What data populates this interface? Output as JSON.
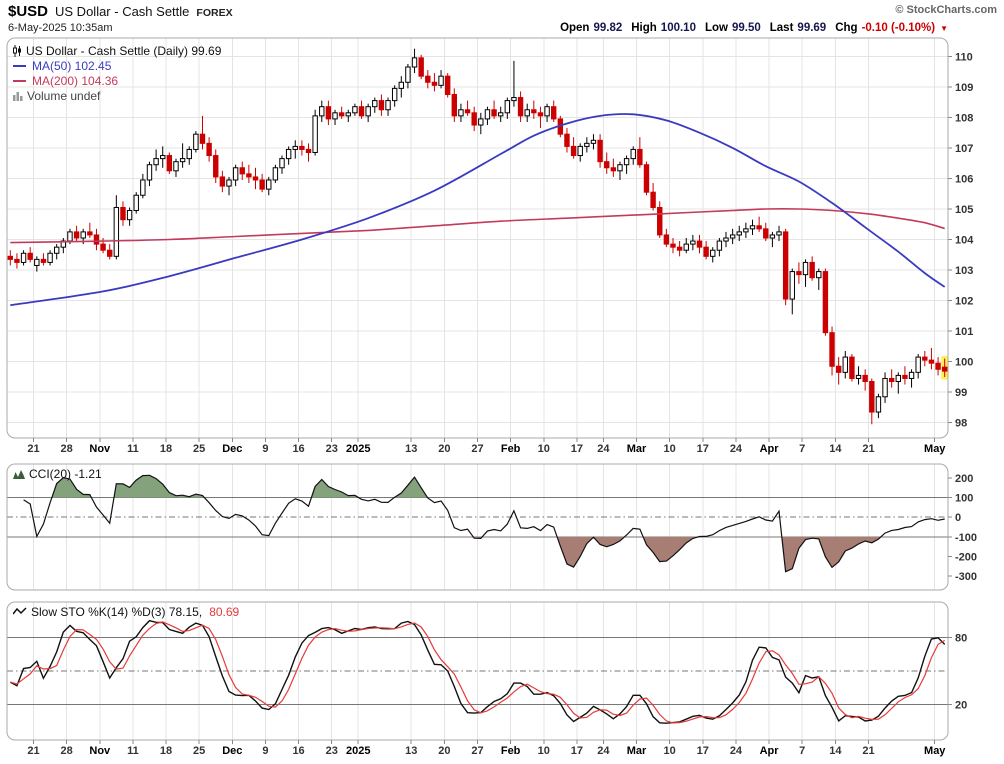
{
  "header": {
    "symbol": "$USD",
    "title": "US Dollar - Cash Settle",
    "exchange": "FOREX",
    "timestamp": "6-May-2025 10:35am",
    "copyright": "© StockCharts.com",
    "quote": {
      "open_label": "Open",
      "open": "99.82",
      "high_label": "High",
      "high": "100.10",
      "low_label": "Low",
      "low": "99.50",
      "last_label": "Last",
      "last": "99.69",
      "chg_label": "Chg",
      "chg": "-0.10 (-0.10%)"
    }
  },
  "main_panel": {
    "legend_title": "US Dollar - Cash Settle (Daily) 99.69",
    "ma50_label": "MA(50) 102.45",
    "ma200_label": "MA(200) 104.36",
    "volume_label": "Volume undef"
  },
  "cci_panel": {
    "legend": "CCI(20) -1.21"
  },
  "sto_panel": {
    "legend_k": "Slow STO %K(14) %D(3) 78.15,",
    "legend_d": "80.69"
  },
  "colors": {
    "up": "#000000",
    "down": "#cc0000",
    "ma50": "#3a3ac0",
    "ma200": "#c43a5c",
    "sto_d": "#e63a3a",
    "grid": "#e4e4e4",
    "panel_border": "#aaaaaa",
    "axis_text": "#333333",
    "cci_pos_fill": "#84a27c",
    "cci_neg_fill": "#a87d74",
    "highlight": "#ffee55"
  },
  "chart_data": {
    "type": "candlestick",
    "title": "US Dollar - Cash Settle (Daily)",
    "last_close": 99.69,
    "price_range": [
      97.5,
      110.6
    ],
    "y_ticks_price": [
      98,
      99,
      100,
      101,
      102,
      103,
      104,
      105,
      106,
      107,
      108,
      109,
      110
    ],
    "x_ticks": [
      {
        "i": 4,
        "l": "21"
      },
      {
        "i": 9,
        "l": "28"
      },
      {
        "i": 14,
        "l": "Nov",
        "b": 1
      },
      {
        "i": 19,
        "l": "11"
      },
      {
        "i": 24,
        "l": "18"
      },
      {
        "i": 29,
        "l": "25"
      },
      {
        "i": 34,
        "l": "Dec",
        "b": 1
      },
      {
        "i": 39,
        "l": "9"
      },
      {
        "i": 44,
        "l": "16"
      },
      {
        "i": 49,
        "l": "23"
      },
      {
        "i": 53,
        "l": "2025",
        "b": 1
      },
      {
        "i": 61,
        "l": "13"
      },
      {
        "i": 66,
        "l": "20"
      },
      {
        "i": 71,
        "l": "27"
      },
      {
        "i": 76,
        "l": "Feb",
        "b": 1
      },
      {
        "i": 81,
        "l": "10"
      },
      {
        "i": 86,
        "l": "17"
      },
      {
        "i": 90,
        "l": "24"
      },
      {
        "i": 95,
        "l": "Mar",
        "b": 1
      },
      {
        "i": 100,
        "l": "10"
      },
      {
        "i": 105,
        "l": "17"
      },
      {
        "i": 110,
        "l": "24"
      },
      {
        "i": 115,
        "l": "Apr",
        "b": 1
      },
      {
        "i": 120,
        "l": "7"
      },
      {
        "i": 125,
        "l": "14"
      },
      {
        "i": 130,
        "l": "21"
      },
      {
        "i": 140,
        "l": "May",
        "b": 1
      }
    ],
    "candles": [
      [
        103.45,
        103.65,
        103.15,
        103.35
      ],
      [
        103.35,
        103.55,
        103.05,
        103.25
      ],
      [
        103.25,
        103.65,
        103.15,
        103.55
      ],
      [
        103.55,
        103.75,
        103.25,
        103.35
      ],
      [
        103.15,
        103.45,
        102.95,
        103.35
      ],
      [
        103.35,
        103.55,
        103.15,
        103.25
      ],
      [
        103.25,
        103.65,
        103.15,
        103.55
      ],
      [
        103.55,
        103.85,
        103.35,
        103.75
      ],
      [
        103.75,
        104.05,
        103.55,
        103.95
      ],
      [
        103.95,
        104.35,
        103.85,
        104.25
      ],
      [
        104.25,
        104.45,
        103.95,
        104.05
      ],
      [
        104.05,
        104.35,
        103.85,
        104.25
      ],
      [
        104.25,
        104.55,
        104.05,
        104.15
      ],
      [
        104.15,
        104.35,
        103.65,
        103.85
      ],
      [
        103.85,
        104.05,
        103.55,
        103.65
      ],
      [
        103.65,
        103.85,
        103.35,
        103.45
      ],
      [
        103.45,
        105.45,
        103.35,
        105.05
      ],
      [
        105.05,
        105.25,
        104.45,
        104.65
      ],
      [
        104.65,
        105.05,
        104.45,
        104.95
      ],
      [
        104.95,
        105.55,
        104.85,
        105.45
      ],
      [
        105.45,
        106.15,
        105.35,
        105.95
      ],
      [
        105.95,
        106.55,
        105.75,
        106.45
      ],
      [
        106.45,
        106.95,
        106.25,
        106.65
      ],
      [
        106.65,
        107.05,
        106.35,
        106.75
      ],
      [
        106.75,
        106.85,
        106.15,
        106.25
      ],
      [
        106.25,
        106.65,
        106.05,
        106.55
      ],
      [
        106.55,
        107.15,
        106.35,
        106.65
      ],
      [
        106.65,
        107.05,
        106.45,
        106.95
      ],
      [
        106.95,
        107.55,
        106.85,
        107.45
      ],
      [
        107.45,
        108.05,
        106.95,
        107.15
      ],
      [
        107.15,
        107.35,
        106.55,
        106.75
      ],
      [
        106.75,
        106.95,
        105.85,
        106.05
      ],
      [
        106.05,
        106.25,
        105.55,
        105.75
      ],
      [
        105.75,
        106.05,
        105.45,
        105.95
      ],
      [
        105.95,
        106.45,
        105.75,
        106.35
      ],
      [
        106.35,
        106.55,
        105.95,
        106.15
      ],
      [
        106.15,
        106.45,
        105.85,
        106.05
      ],
      [
        106.05,
        106.35,
        105.65,
        105.95
      ],
      [
        105.95,
        106.15,
        105.55,
        105.65
      ],
      [
        105.65,
        106.05,
        105.45,
        105.95
      ],
      [
        105.95,
        106.45,
        105.85,
        106.35
      ],
      [
        106.35,
        106.75,
        106.15,
        106.65
      ],
      [
        106.65,
        107.05,
        106.45,
        106.95
      ],
      [
        106.95,
        107.25,
        106.65,
        107.05
      ],
      [
        107.05,
        107.25,
        106.75,
        106.95
      ],
      [
        106.95,
        107.15,
        106.55,
        106.85
      ],
      [
        106.85,
        108.25,
        106.75,
        108.05
      ],
      [
        108.05,
        108.55,
        107.85,
        108.35
      ],
      [
        108.35,
        108.55,
        107.75,
        107.95
      ],
      [
        107.95,
        108.25,
        107.75,
        108.15
      ],
      [
        108.15,
        108.35,
        107.95,
        108.05
      ],
      [
        108.05,
        108.25,
        107.85,
        108.15
      ],
      [
        108.15,
        108.45,
        108.05,
        108.35
      ],
      [
        108.35,
        108.55,
        107.95,
        108.05
      ],
      [
        108.05,
        108.45,
        107.85,
        108.35
      ],
      [
        108.35,
        108.65,
        108.15,
        108.55
      ],
      [
        108.55,
        108.75,
        108.05,
        108.25
      ],
      [
        108.25,
        108.65,
        108.05,
        108.55
      ],
      [
        108.55,
        109.05,
        108.35,
        108.95
      ],
      [
        108.95,
        109.35,
        108.65,
        109.15
      ],
      [
        109.15,
        109.75,
        108.95,
        109.65
      ],
      [
        109.65,
        110.25,
        109.45,
        109.95
      ],
      [
        109.95,
        110.05,
        109.25,
        109.35
      ],
      [
        109.35,
        109.55,
        108.95,
        109.15
      ],
      [
        109.15,
        109.45,
        108.85,
        109.05
      ],
      [
        109.05,
        109.55,
        108.95,
        109.35
      ],
      [
        109.35,
        109.45,
        108.65,
        108.75
      ],
      [
        108.75,
        108.95,
        107.85,
        108.05
      ],
      [
        108.05,
        108.45,
        107.85,
        108.25
      ],
      [
        108.25,
        108.55,
        108.05,
        108.15
      ],
      [
        108.15,
        108.35,
        107.55,
        107.75
      ],
      [
        107.75,
        108.15,
        107.45,
        107.95
      ],
      [
        107.95,
        108.35,
        107.75,
        108.25
      ],
      [
        108.25,
        108.55,
        107.95,
        108.05
      ],
      [
        108.05,
        108.35,
        107.85,
        108.15
      ],
      [
        108.15,
        108.65,
        107.95,
        108.55
      ],
      [
        108.55,
        109.85,
        108.35,
        108.65
      ],
      [
        108.65,
        108.85,
        107.85,
        108.05
      ],
      [
        108.05,
        108.45,
        107.85,
        108.25
      ],
      [
        108.25,
        108.55,
        107.95,
        108.15
      ],
      [
        108.15,
        108.35,
        107.65,
        108.05
      ],
      [
        108.05,
        108.45,
        107.85,
        108.35
      ],
      [
        108.35,
        108.55,
        107.85,
        107.95
      ],
      [
        107.95,
        108.05,
        107.35,
        107.45
      ],
      [
        107.45,
        107.65,
        106.85,
        107.05
      ],
      [
        107.05,
        107.35,
        106.65,
        106.75
      ],
      [
        106.75,
        107.15,
        106.55,
        107.05
      ],
      [
        107.05,
        107.35,
        106.85,
        107.15
      ],
      [
        107.15,
        107.45,
        106.95,
        107.25
      ],
      [
        107.25,
        107.45,
        106.35,
        106.55
      ],
      [
        106.55,
        106.85,
        106.15,
        106.35
      ],
      [
        106.35,
        106.65,
        106.05,
        106.25
      ],
      [
        106.25,
        106.55,
        105.95,
        106.45
      ],
      [
        106.45,
        106.75,
        106.15,
        106.65
      ],
      [
        106.65,
        107.05,
        106.45,
        106.95
      ],
      [
        106.95,
        107.35,
        106.35,
        106.45
      ],
      [
        106.45,
        106.55,
        105.45,
        105.55
      ],
      [
        105.55,
        105.85,
        104.95,
        105.05
      ],
      [
        105.05,
        105.25,
        104.05,
        104.15
      ],
      [
        104.15,
        104.35,
        103.75,
        103.85
      ],
      [
        103.85,
        104.05,
        103.55,
        103.75
      ],
      [
        103.75,
        103.95,
        103.45,
        103.65
      ],
      [
        103.65,
        104.05,
        103.55,
        103.85
      ],
      [
        103.85,
        104.15,
        103.65,
        103.95
      ],
      [
        103.95,
        104.15,
        103.55,
        103.75
      ],
      [
        103.75,
        103.95,
        103.35,
        103.45
      ],
      [
        103.45,
        103.75,
        103.25,
        103.65
      ],
      [
        103.65,
        104.05,
        103.45,
        103.95
      ],
      [
        103.95,
        104.25,
        103.75,
        104.05
      ],
      [
        104.05,
        104.35,
        103.85,
        104.15
      ],
      [
        104.15,
        104.45,
        103.95,
        104.25
      ],
      [
        104.25,
        104.55,
        104.05,
        104.35
      ],
      [
        104.35,
        104.65,
        104.15,
        104.45
      ],
      [
        104.45,
        104.75,
        104.25,
        104.35
      ],
      [
        104.35,
        104.55,
        103.95,
        104.05
      ],
      [
        104.05,
        104.25,
        103.75,
        104.15
      ],
      [
        104.15,
        104.45,
        103.95,
        104.25
      ],
      [
        104.25,
        104.35,
        101.85,
        102.05
      ],
      [
        102.05,
        103.05,
        101.55,
        102.95
      ],
      [
        102.95,
        103.25,
        102.55,
        102.85
      ],
      [
        102.85,
        103.35,
        102.45,
        103.25
      ],
      [
        103.25,
        103.45,
        102.65,
        102.75
      ],
      [
        102.75,
        103.05,
        102.35,
        102.95
      ],
      [
        102.95,
        103.05,
        100.85,
        100.95
      ],
      [
        100.95,
        101.15,
        99.55,
        99.85
      ],
      [
        99.85,
        100.15,
        99.25,
        99.65
      ],
      [
        99.65,
        100.35,
        99.45,
        100.15
      ],
      [
        100.15,
        100.25,
        99.35,
        99.45
      ],
      [
        99.45,
        99.85,
        99.25,
        99.55
      ],
      [
        99.55,
        99.75,
        99.05,
        99.35
      ],
      [
        99.35,
        99.45,
        97.95,
        98.35
      ],
      [
        98.35,
        98.95,
        98.15,
        98.85
      ],
      [
        98.85,
        99.65,
        98.65,
        99.45
      ],
      [
        99.45,
        99.75,
        99.15,
        99.35
      ],
      [
        99.35,
        99.65,
        98.95,
        99.55
      ],
      [
        99.55,
        99.85,
        99.25,
        99.45
      ],
      [
        99.45,
        99.75,
        99.15,
        99.65
      ],
      [
        99.65,
        100.25,
        99.45,
        100.15
      ],
      [
        100.15,
        100.35,
        99.85,
        100.05
      ],
      [
        100.05,
        100.45,
        99.75,
        99.95
      ],
      [
        99.95,
        100.15,
        99.55,
        99.75
      ],
      [
        99.82,
        100.1,
        99.5,
        99.69
      ]
    ],
    "ma50_points": [
      [
        0,
        101.85
      ],
      [
        14,
        102.3
      ],
      [
        24,
        102.8
      ],
      [
        34,
        103.4
      ],
      [
        44,
        104.0
      ],
      [
        54,
        104.7
      ],
      [
        64,
        105.6
      ],
      [
        74,
        106.8
      ],
      [
        79,
        107.4
      ],
      [
        84,
        107.8
      ],
      [
        89,
        108.05
      ],
      [
        94,
        108.1
      ],
      [
        99,
        107.9
      ],
      [
        104,
        107.5
      ],
      [
        109,
        107.0
      ],
      [
        114,
        106.4
      ],
      [
        119,
        105.9
      ],
      [
        124,
        105.2
      ],
      [
        129,
        104.4
      ],
      [
        134,
        103.6
      ],
      [
        138,
        102.9
      ],
      [
        141,
        102.45
      ]
    ],
    "ma200_points": [
      [
        0,
        103.9
      ],
      [
        14,
        103.95
      ],
      [
        24,
        104.0
      ],
      [
        34,
        104.1
      ],
      [
        44,
        104.2
      ],
      [
        54,
        104.3
      ],
      [
        64,
        104.45
      ],
      [
        74,
        104.6
      ],
      [
        84,
        104.7
      ],
      [
        94,
        104.8
      ],
      [
        104,
        104.9
      ],
      [
        109,
        104.95
      ],
      [
        114,
        105.0
      ],
      [
        119,
        105.0
      ],
      [
        124,
        104.95
      ],
      [
        129,
        104.85
      ],
      [
        134,
        104.7
      ],
      [
        138,
        104.55
      ],
      [
        141,
        104.36
      ]
    ],
    "cci": {
      "period": 20,
      "last": -1.21,
      "range": [
        270,
        -370
      ],
      "solid_lines": [
        100,
        -100
      ],
      "dashdot_lines": [
        0
      ],
      "y_ticks": [
        200,
        100,
        0,
        -100,
        -200,
        -300
      ]
    },
    "sto": {
      "k_period": 14,
      "d_period": 3,
      "k_last": 78.15,
      "d_last": 80.69,
      "range": [
        112,
        -12
      ],
      "solid_lines": [
        80,
        20
      ],
      "dashdot_lines": [
        50
      ],
      "y_ticks": [
        80,
        20
      ]
    }
  }
}
